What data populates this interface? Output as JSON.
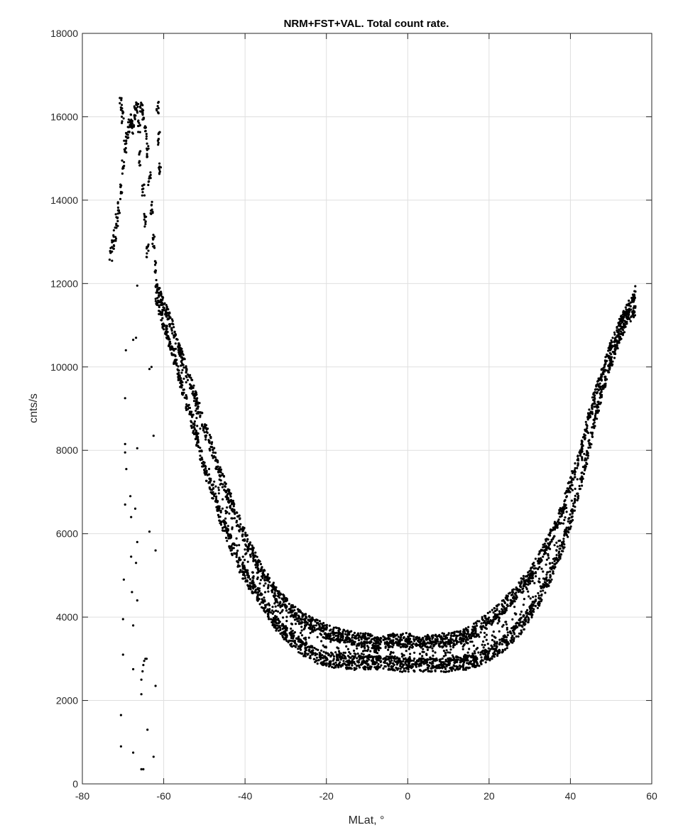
{
  "chart_data": {
    "type": "scatter",
    "title": "NRM+FST+VAL. Total count rate.",
    "xlabel": "MLat, °",
    "ylabel": "cnts/s",
    "xlim": [
      -80,
      60
    ],
    "ylim": [
      0,
      18000
    ],
    "xticks": [
      "-80",
      "-60",
      "-40",
      "-20",
      "0",
      "20",
      "40",
      "60"
    ],
    "yticks": [
      "0",
      "2000",
      "4000",
      "6000",
      "8000",
      "10000",
      "12000",
      "14000",
      "16000",
      "18000"
    ],
    "grid": true,
    "marker_color": "#000000",
    "series": [
      {
        "description_values": "main U-shaped band: pairs of [MLat, upper-band count rate, lower-band count rate]",
        "points": [
          [
            -62,
            12000,
            11700
          ],
          [
            -60,
            11500,
            11000
          ],
          [
            -58,
            11000,
            10400
          ],
          [
            -56,
            10400,
            9700
          ],
          [
            -54,
            9800,
            9000
          ],
          [
            -52,
            9200,
            8300
          ],
          [
            -50,
            8600,
            7600
          ],
          [
            -48,
            8000,
            7000
          ],
          [
            -46,
            7400,
            6400
          ],
          [
            -44,
            6900,
            5900
          ],
          [
            -42,
            6400,
            5400
          ],
          [
            -40,
            5900,
            5000
          ],
          [
            -38,
            5500,
            4700
          ],
          [
            -36,
            5100,
            4400
          ],
          [
            -34,
            4800,
            4100
          ],
          [
            -32,
            4500,
            3800
          ],
          [
            -30,
            4300,
            3600
          ],
          [
            -28,
            4100,
            3400
          ],
          [
            -26,
            3950,
            3250
          ],
          [
            -24,
            3850,
            3150
          ],
          [
            -22,
            3750,
            3050
          ],
          [
            -20,
            3650,
            3000
          ],
          [
            -18,
            3600,
            2950
          ],
          [
            -16,
            3550,
            2950
          ],
          [
            -14,
            3500,
            2900
          ],
          [
            -12,
            3450,
            2900
          ],
          [
            -10,
            3450,
            2900
          ],
          [
            -8,
            3400,
            2900
          ],
          [
            -6,
            3400,
            2900
          ],
          [
            -4,
            3450,
            2900
          ],
          [
            -2,
            3450,
            2850
          ],
          [
            0,
            3450,
            2850
          ],
          [
            2,
            3400,
            2850
          ],
          [
            4,
            3450,
            2850
          ],
          [
            6,
            3400,
            2850
          ],
          [
            8,
            3450,
            2850
          ],
          [
            10,
            3450,
            2850
          ],
          [
            12,
            3500,
            2900
          ],
          [
            14,
            3550,
            2900
          ],
          [
            16,
            3650,
            2950
          ],
          [
            18,
            3800,
            3000
          ],
          [
            20,
            3950,
            3100
          ],
          [
            22,
            4100,
            3250
          ],
          [
            24,
            4300,
            3400
          ],
          [
            26,
            4500,
            3600
          ],
          [
            28,
            4750,
            3800
          ],
          [
            30,
            5000,
            4100
          ],
          [
            32,
            5300,
            4400
          ],
          [
            34,
            5700,
            4800
          ],
          [
            36,
            6100,
            5200
          ],
          [
            38,
            6600,
            5700
          ],
          [
            40,
            7200,
            6300
          ],
          [
            42,
            7800,
            7000
          ],
          [
            44,
            8600,
            7800
          ],
          [
            46,
            9300,
            8700
          ],
          [
            48,
            9900,
            9500
          ],
          [
            50,
            10500,
            10100
          ],
          [
            52,
            11000,
            10700
          ],
          [
            54,
            11400,
            11100
          ],
          [
            56,
            11800,
            11400
          ]
        ]
      },
      {
        "description_values": "high-latitude cluster near -72 to -62 MLat: [MLat, count rate]",
        "points": [
          [
            -73,
            12700
          ],
          [
            -72.5,
            13000
          ],
          [
            -72,
            13200
          ],
          [
            -71.5,
            13500
          ],
          [
            -71,
            13800
          ],
          [
            -70.5,
            14200
          ],
          [
            -70,
            14800
          ],
          [
            -69.5,
            15300
          ],
          [
            -69,
            15600
          ],
          [
            -68.5,
            15800
          ],
          [
            -68,
            15900
          ],
          [
            -67.5,
            15700
          ],
          [
            -67,
            16100
          ],
          [
            -66.5,
            16200
          ],
          [
            -66,
            15800
          ],
          [
            -65.5,
            16200
          ],
          [
            -65,
            16100
          ],
          [
            -64.5,
            15600
          ],
          [
            -64,
            15200
          ],
          [
            -63.5,
            14500
          ],
          [
            -63,
            13800
          ],
          [
            -62.5,
            13000
          ],
          [
            -62,
            12400
          ],
          [
            -61.5,
            16200
          ],
          [
            -61.2,
            15500
          ],
          [
            -61,
            14800
          ],
          [
            -70.5,
            16300
          ],
          [
            -70,
            16000
          ],
          [
            -66,
            15000
          ],
          [
            -65,
            14200
          ],
          [
            -64.5,
            13500
          ],
          [
            -64,
            12800
          ]
        ]
      },
      {
        "description_values": "sparse low outliers: [MLat, count rate]",
        "points": [
          [
            -70.5,
            900
          ],
          [
            -70.5,
            1650
          ],
          [
            -70,
            3100
          ],
          [
            -70,
            3950
          ],
          [
            -69.8,
            4900
          ],
          [
            -69.5,
            6700
          ],
          [
            -69.2,
            7550
          ],
          [
            -69.5,
            8150
          ],
          [
            -69.5,
            7950
          ],
          [
            -69.5,
            9250
          ],
          [
            -69.3,
            10400
          ],
          [
            -68.2,
            6900
          ],
          [
            -68,
            6400
          ],
          [
            -68,
            5450
          ],
          [
            -67.8,
            4600
          ],
          [
            -67.5,
            3800
          ],
          [
            -67.5,
            2750
          ],
          [
            -67.5,
            750
          ],
          [
            -67,
            6600
          ],
          [
            -66.8,
            5300
          ],
          [
            -66.5,
            5800
          ],
          [
            -66.5,
            4400
          ],
          [
            -66.5,
            8050
          ],
          [
            -67.5,
            10650
          ],
          [
            -66.8,
            10700
          ],
          [
            -66.5,
            11950
          ],
          [
            -65.5,
            2500
          ],
          [
            -65.2,
            2700
          ],
          [
            -65,
            2850
          ],
          [
            -64.8,
            2950
          ],
          [
            -64.5,
            3000
          ],
          [
            -64.2,
            3000
          ],
          [
            -65.5,
            2150
          ],
          [
            -65.5,
            350
          ],
          [
            -65,
            350
          ],
          [
            -64,
            1300
          ],
          [
            -63.5,
            6050
          ],
          [
            -63.5,
            9950
          ],
          [
            -63,
            10000
          ],
          [
            -62.5,
            8350
          ],
          [
            -62,
            5600
          ],
          [
            -62,
            2350
          ],
          [
            -62.5,
            650
          ]
        ]
      }
    ]
  }
}
